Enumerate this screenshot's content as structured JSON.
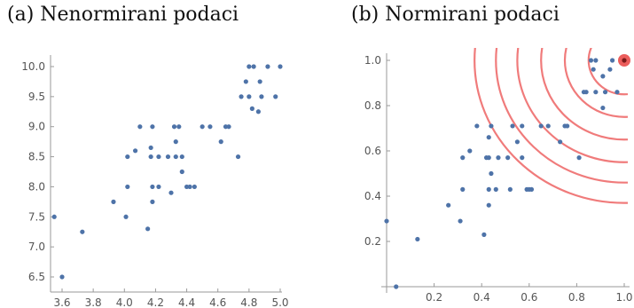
{
  "chart_data": [
    {
      "type": "scatter",
      "title": "(a) Nenormirani podaci",
      "xlabel": "",
      "ylabel": "",
      "xlim": [
        3.55,
        5.0
      ],
      "ylim": [
        6.4,
        10.1
      ],
      "xticks": [
        3.6,
        3.8,
        4.0,
        4.2,
        4.4,
        4.6,
        4.8,
        5.0
      ],
      "xtick_labels": [
        "3.6",
        "3.8",
        "4.0",
        "4.2",
        "4.4",
        "4.6",
        "4.8",
        "5.0"
      ],
      "yticks": [
        6.5,
        7.0,
        7.5,
        8.0,
        8.5,
        9.0,
        9.5,
        10.0
      ],
      "ytick_labels": [
        "6.5",
        "7.0",
        "7.5",
        "8.0",
        "8.5",
        "9.0",
        "9.5",
        "10.0"
      ],
      "point_color": "#4e73a8",
      "points": [
        [
          3.55,
          7.5
        ],
        [
          3.6,
          6.5
        ],
        [
          3.73,
          7.25
        ],
        [
          3.93,
          7.75
        ],
        [
          4.01,
          7.5
        ],
        [
          4.02,
          8.0
        ],
        [
          4.02,
          8.5
        ],
        [
          4.07,
          8.6
        ],
        [
          4.1,
          9.0
        ],
        [
          4.15,
          7.3
        ],
        [
          4.17,
          8.5
        ],
        [
          4.17,
          8.65
        ],
        [
          4.18,
          7.75
        ],
        [
          4.18,
          8.0
        ],
        [
          4.18,
          9.0
        ],
        [
          4.22,
          8.0
        ],
        [
          4.22,
          8.5
        ],
        [
          4.28,
          8.5
        ],
        [
          4.3,
          7.9
        ],
        [
          4.32,
          9.0
        ],
        [
          4.33,
          8.5
        ],
        [
          4.33,
          8.75
        ],
        [
          4.35,
          9.0
        ],
        [
          4.37,
          8.5
        ],
        [
          4.37,
          8.25
        ],
        [
          4.4,
          8.0
        ],
        [
          4.42,
          8.0
        ],
        [
          4.45,
          8.0
        ],
        [
          4.5,
          9.0
        ],
        [
          4.55,
          9.0
        ],
        [
          4.62,
          8.75
        ],
        [
          4.65,
          9.0
        ],
        [
          4.67,
          9.0
        ],
        [
          4.73,
          8.5
        ],
        [
          4.75,
          9.5
        ],
        [
          4.78,
          9.75
        ],
        [
          4.8,
          9.5
        ],
        [
          4.8,
          10.0
        ],
        [
          4.82,
          9.3
        ],
        [
          4.83,
          10.0
        ],
        [
          4.86,
          9.25
        ],
        [
          4.87,
          9.75
        ],
        [
          4.88,
          9.5
        ],
        [
          4.92,
          10.0
        ],
        [
          4.97,
          9.5
        ],
        [
          5.0,
          10.0
        ]
      ]
    },
    {
      "type": "scatter",
      "title": "(b) Normirani podaci",
      "xlabel": "",
      "ylabel": "",
      "xlim": [
        0,
        1.0
      ],
      "ylim": [
        -0.02,
        1.03
      ],
      "xticks": [
        0.2,
        0.4,
        0.6,
        0.8,
        1.0
      ],
      "xtick_labels": [
        "0.2",
        "0.4",
        "0.6",
        "0.8",
        "1.0"
      ],
      "yticks": [
        0.2,
        0.4,
        0.6,
        0.8,
        1.0
      ],
      "ytick_labels": [
        "0.2",
        "0.4",
        "0.6",
        "0.8",
        "1.0"
      ],
      "point_color": "#4e73a8",
      "highlight_color": "#e8413f",
      "arc_color": "#f07b7b",
      "highlight_point": [
        1.0,
        1.0
      ],
      "arc_radii": [
        0.15,
        0.25,
        0.35,
        0.45,
        0.54,
        0.63
      ],
      "points": [
        [
          0.0,
          0.29
        ],
        [
          0.04,
          0.0
        ],
        [
          0.13,
          0.21
        ],
        [
          0.26,
          0.36
        ],
        [
          0.31,
          0.29
        ],
        [
          0.32,
          0.43
        ],
        [
          0.32,
          0.57
        ],
        [
          0.35,
          0.6
        ],
        [
          0.38,
          0.71
        ],
        [
          0.41,
          0.23
        ],
        [
          0.42,
          0.57
        ],
        [
          0.43,
          0.57
        ],
        [
          0.43,
          0.36
        ],
        [
          0.43,
          0.43
        ],
        [
          0.43,
          0.66
        ],
        [
          0.44,
          0.5
        ],
        [
          0.44,
          0.71
        ],
        [
          0.46,
          0.43
        ],
        [
          0.47,
          0.57
        ],
        [
          0.51,
          0.57
        ],
        [
          0.52,
          0.43
        ],
        [
          0.53,
          0.71
        ],
        [
          0.55,
          0.64
        ],
        [
          0.57,
          0.57
        ],
        [
          0.57,
          0.71
        ],
        [
          0.59,
          0.43
        ],
        [
          0.6,
          0.43
        ],
        [
          0.61,
          0.43
        ],
        [
          0.65,
          0.71
        ],
        [
          0.68,
          0.71
        ],
        [
          0.73,
          0.64
        ],
        [
          0.75,
          0.71
        ],
        [
          0.76,
          0.71
        ],
        [
          0.81,
          0.57
        ],
        [
          0.83,
          0.86
        ],
        [
          0.84,
          0.86
        ],
        [
          0.86,
          1.0
        ],
        [
          0.87,
          0.96
        ],
        [
          0.88,
          0.86
        ],
        [
          0.88,
          1.0
        ],
        [
          0.91,
          0.93
        ],
        [
          0.92,
          0.86
        ],
        [
          0.97,
          0.86
        ],
        [
          0.91,
          0.79
        ],
        [
          0.94,
          0.96
        ],
        [
          0.95,
          1.0
        ]
      ]
    }
  ]
}
